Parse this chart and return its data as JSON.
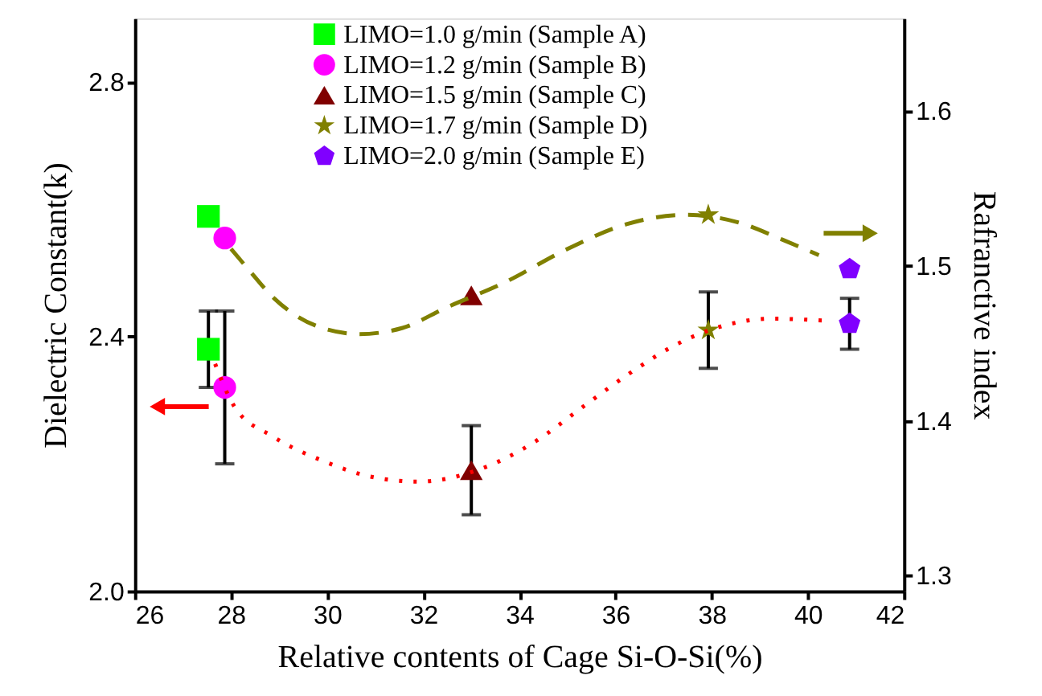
{
  "chart_data": {
    "type": "scatter",
    "xlabel": "Relative contents of Cage Si-O-Si(%)",
    "ylabel": "Dielectric Constant(k)",
    "y2label": "Rafranctive index",
    "xlim": [
      26,
      42
    ],
    "xticks": [
      26,
      28,
      30,
      32,
      34,
      36,
      38,
      40,
      42
    ],
    "ylim": [
      2.0,
      2.9
    ],
    "yticks": [
      {
        "value": 2.0,
        "label": "2.0"
      },
      2.4,
      2.8
    ],
    "y2lim": [
      1.29,
      1.66
    ],
    "y2ticks": [
      1.3,
      1.4,
      1.5,
      1.6
    ],
    "grid": false,
    "legend": "top",
    "series": [
      {
        "name": "LIMO=1.0 g/min (Sample A)",
        "color": "#00ff00",
        "marker": "square",
        "x": [
          27.53
        ],
        "values": [
          2.38
        ],
        "errors": [
          [
            2.32,
            2.44
          ]
        ]
      },
      {
        "name": "LIMO=1.2 g/min (Sample B)",
        "color": "#ff00ff",
        "marker": "circle",
        "x": [
          27.87
        ],
        "values": [
          2.32
        ],
        "errors": [
          [
            2.2,
            2.44
          ]
        ]
      },
      {
        "name": "LIMO=1.5 g/min (Sample C)",
        "color": "#800000",
        "marker": "triangle",
        "x": [
          33.0
        ],
        "values": [
          2.19
        ],
        "errors": [
          [
            2.12,
            2.26
          ]
        ]
      },
      {
        "name": "LIMO=1.7 g/min (Sample D)",
        "color": "#808000",
        "marker": "star",
        "x": [
          37.93
        ],
        "values": [
          2.41
        ],
        "errors": [
          [
            2.35,
            2.47
          ]
        ]
      },
      {
        "name": "LIMO=2.0 g/min (Sample E)",
        "color": "#8000ff",
        "x": [
          40.87
        ],
        "values": [
          2.42
        ],
        "errors": [
          [
            2.38,
            2.46
          ]
        ]
      },
      {
        "color": "#00ff00",
        "marker": "square",
        "axis": "y2",
        "x": [
          27.53
        ],
        "values": [
          1.532
        ]
      },
      {
        "color": "#ff00ff",
        "marker": "circle",
        "axis": "y2",
        "x": [
          27.87
        ],
        "values": [
          1.518
        ]
      },
      {
        "color": "#800000",
        "marker": "triangle",
        "axis": "y2",
        "x": [
          33.0
        ],
        "values": [
          1.481
        ]
      },
      {
        "color": "#808000",
        "marker": "star",
        "axis": "y2",
        "x": [
          37.93
        ],
        "values": [
          1.533
        ]
      },
      {
        "color": "#8000ff",
        "axis": "y2",
        "x": [
          40.87
        ],
        "values": [
          1.498
        ]
      },
      {
        "type": "line",
        "color": "#ff0000",
        "line_style": "dotted",
        "marker": "none",
        "x": [
          27.67,
          28.07,
          28.87,
          29.9,
          30.9,
          31.9,
          33.3,
          34.33,
          35.33,
          36.33,
          37.33,
          38.3,
          39.23,
          40.33
        ],
        "values": [
          2.357,
          2.29,
          2.243,
          2.205,
          2.18,
          2.172,
          2.195,
          2.235,
          2.29,
          2.344,
          2.39,
          2.418,
          2.428,
          2.425
        ]
      },
      {
        "type": "line",
        "color": "#808000",
        "line_style": "dashed",
        "marker": "none",
        "axis": "y2",
        "x": [
          28.0,
          28.33,
          28.9,
          29.8,
          30.67,
          31.57,
          32.47,
          33.67,
          35.0,
          36.23,
          37.47,
          38.57,
          39.47,
          40.23
        ],
        "values": [
          1.511,
          1.499,
          1.479,
          1.461,
          1.456,
          1.46,
          1.473,
          1.489,
          1.511,
          1.527,
          1.533,
          1.528,
          1.517,
          1.507
        ]
      }
    ]
  }
}
